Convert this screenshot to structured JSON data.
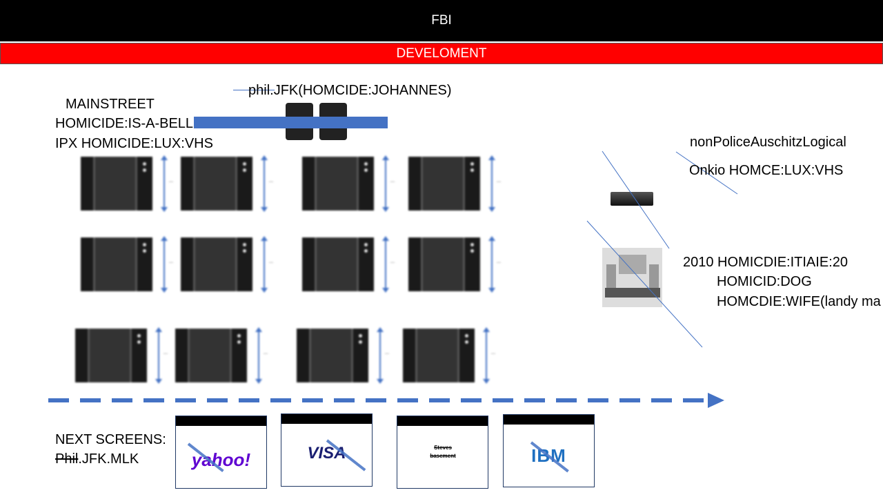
{
  "header": {
    "title": "FBI"
  },
  "banner": {
    "title": "DEVELOMENT"
  },
  "left_block": {
    "line1": "MAINSTREET",
    "line2": "HOMICIDE:IS-A-BELL",
    "line3": "IPX HOMICIDE:LUX:VHS"
  },
  "top_label": {
    "text": "phil.JFK(HOMCIDE:JOHANNES)"
  },
  "right_block": {
    "line1": "nonPoliceAuschitzLogical",
    "line2": "Onkio HOMCE:LUX:VHS",
    "line3": "2010 HOMICDIE:ITIAIE:20",
    "line4": "HOMICID:DOG",
    "line5": "HOMCDIE:WIFE(landy ma"
  },
  "next_screens": {
    "label": "NEXT SCREENS:",
    "sub_struck": "Phil",
    "sub_rest": ".JFK.MLK",
    "cards": [
      {
        "logo": "yahoo!",
        "color": "#5f01d1"
      },
      {
        "logo": "VISA",
        "color": "#1a1f71"
      },
      {
        "logo": "Steves basement",
        "color": "#000000"
      },
      {
        "logo": "IBM",
        "color": "#1f70c1"
      }
    ]
  },
  "colors": {
    "accent": "#4472c4",
    "banner": "#ff0000",
    "header": "#000000"
  }
}
